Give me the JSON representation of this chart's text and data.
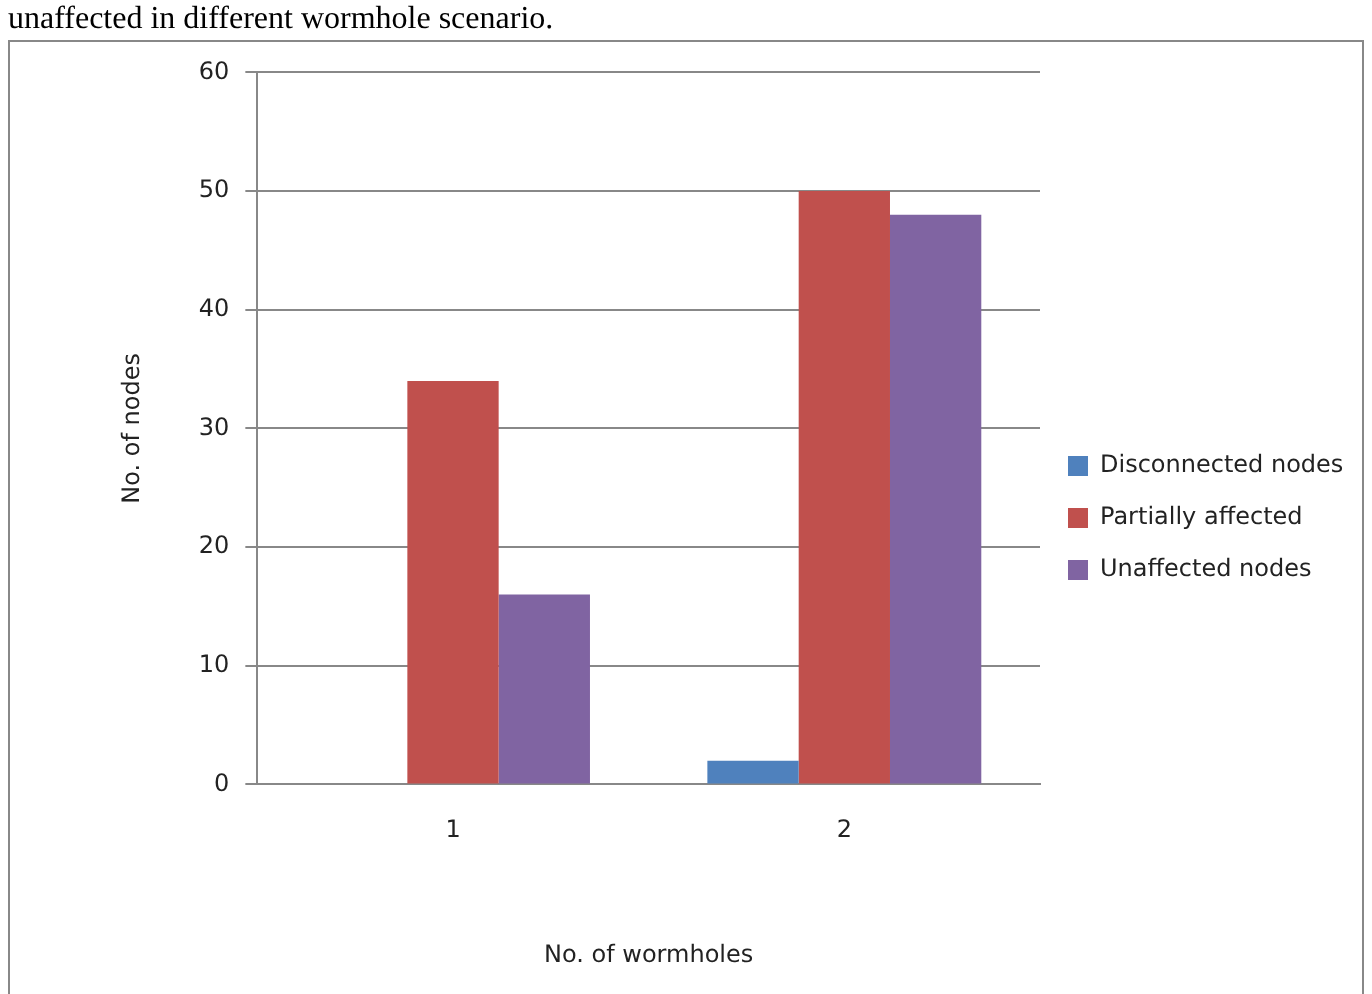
{
  "chart_data": {
    "type": "bar",
    "xlabel": "No. of wormholes",
    "ylabel": "No. of nodes",
    "annotations": [
      "unaffected in different wormhole scenario."
    ],
    "categories": [
      "1",
      "2"
    ],
    "series": [
      {
        "name": "Disconnected nodes",
        "color": "#4f81bd",
        "values": [
          0,
          2
        ]
      },
      {
        "name": "Partially affected",
        "color": "#c0504d",
        "values": [
          34,
          50
        ]
      },
      {
        "name": "Unaffected nodes",
        "color": "#8064a2",
        "values": [
          16,
          48
        ]
      }
    ],
    "ylim": [
      0,
      60
    ],
    "yticks": [
      0,
      10,
      20,
      30,
      40,
      50,
      60
    ],
    "grid": "y",
    "legend": "right"
  }
}
